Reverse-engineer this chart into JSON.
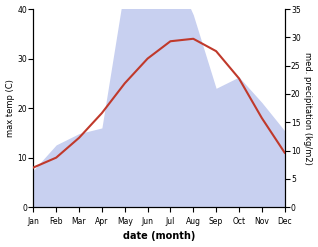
{
  "months": [
    "Jan",
    "Feb",
    "Mar",
    "Apr",
    "May",
    "Jun",
    "Jul",
    "Aug",
    "Sep",
    "Oct",
    "Nov",
    "Dec"
  ],
  "temp": [
    8.0,
    10.0,
    14.0,
    19.0,
    25.0,
    30.0,
    33.5,
    34.0,
    31.5,
    26.0,
    18.0,
    11.0
  ],
  "precip": [
    6.5,
    11.0,
    13.0,
    14.0,
    39.0,
    36.0,
    43.0,
    34.0,
    21.0,
    23.0,
    18.5,
    13.5
  ],
  "temp_color": "#c0392b",
  "precip_fill_color": "#c8d0f0",
  "left_ylabel": "max temp (C)",
  "right_ylabel": "med. precipitation (kg/m2)",
  "xlabel": "date (month)",
  "ylim_left": [
    0,
    40
  ],
  "ylim_right": [
    0,
    35
  ],
  "yticks_left": [
    0,
    10,
    20,
    30,
    40
  ],
  "yticks_right": [
    0,
    5,
    10,
    15,
    20,
    25,
    30,
    35
  ],
  "background_color": "#ffffff"
}
